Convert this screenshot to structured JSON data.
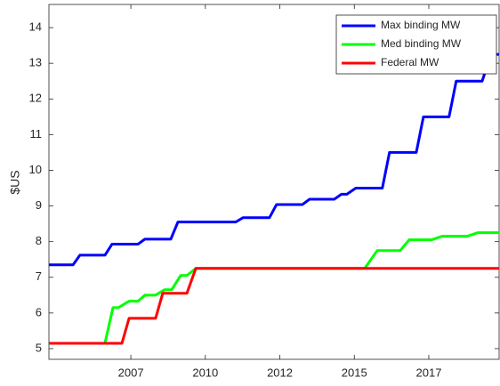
{
  "chart_data": {
    "type": "line",
    "ylabel": "$US",
    "xlim": [
      2004.25,
      2019.36
    ],
    "xticks": [
      {
        "value": 2007,
        "label": "2007"
      },
      {
        "value": 2009.5,
        "label": "2010"
      },
      {
        "value": 2012,
        "label": "2012"
      },
      {
        "value": 2014.5,
        "label": "2015"
      },
      {
        "value": 2017,
        "label": "2017"
      }
    ],
    "ylim": [
      4.7,
      14.65
    ],
    "yticks": [
      5,
      6,
      7,
      8,
      9,
      10,
      11,
      12,
      13,
      14
    ],
    "legend": "upper right",
    "series": [
      {
        "name": "Max binding MW",
        "color": "#0000ff",
        "x": [
          2004.25,
          2005.06,
          2005.29,
          2006.13,
          2006.37,
          2007.24,
          2007.47,
          2008.34,
          2008.58,
          2010.52,
          2010.76,
          2011.65,
          2011.89,
          2012.76,
          2013.0,
          2013.83,
          2014.07,
          2014.25,
          2014.55,
          2015.44,
          2015.68,
          2016.58,
          2016.82,
          2017.68,
          2017.92,
          2018.79,
          2019.09,
          2019.36
        ],
        "values": [
          7.35,
          7.35,
          7.62,
          7.62,
          7.93,
          7.93,
          8.07,
          8.07,
          8.55,
          8.55,
          8.67,
          8.67,
          9.04,
          9.04,
          9.19,
          9.19,
          9.33,
          9.33,
          9.5,
          9.5,
          10.5,
          10.5,
          11.5,
          11.5,
          12.5,
          12.5,
          13.25,
          13.25
        ]
      },
      {
        "name": "Med binding MW",
        "color": "#00ff00",
        "x": [
          2004.25,
          2006.13,
          2006.4,
          2006.58,
          2006.94,
          2007.24,
          2007.47,
          2007.83,
          2008.13,
          2008.37,
          2008.67,
          2008.88,
          2009.18,
          2014.85,
          2015.27,
          2016.04,
          2016.34,
          2017.09,
          2017.44,
          2018.28,
          2018.64,
          2019.36
        ],
        "values": [
          5.15,
          5.15,
          6.15,
          6.15,
          6.33,
          6.33,
          6.5,
          6.5,
          6.65,
          6.65,
          7.05,
          7.05,
          7.25,
          7.25,
          7.75,
          7.75,
          8.05,
          8.05,
          8.15,
          8.15,
          8.25,
          8.25
        ]
      },
      {
        "name": "Federal MW",
        "color": "#ff0000",
        "x": [
          2004.25,
          2006.7,
          2006.94,
          2007.83,
          2008.07,
          2008.88,
          2009.18,
          2019.36
        ],
        "values": [
          5.15,
          5.15,
          5.85,
          5.85,
          6.55,
          6.55,
          7.25,
          7.25
        ]
      }
    ]
  }
}
